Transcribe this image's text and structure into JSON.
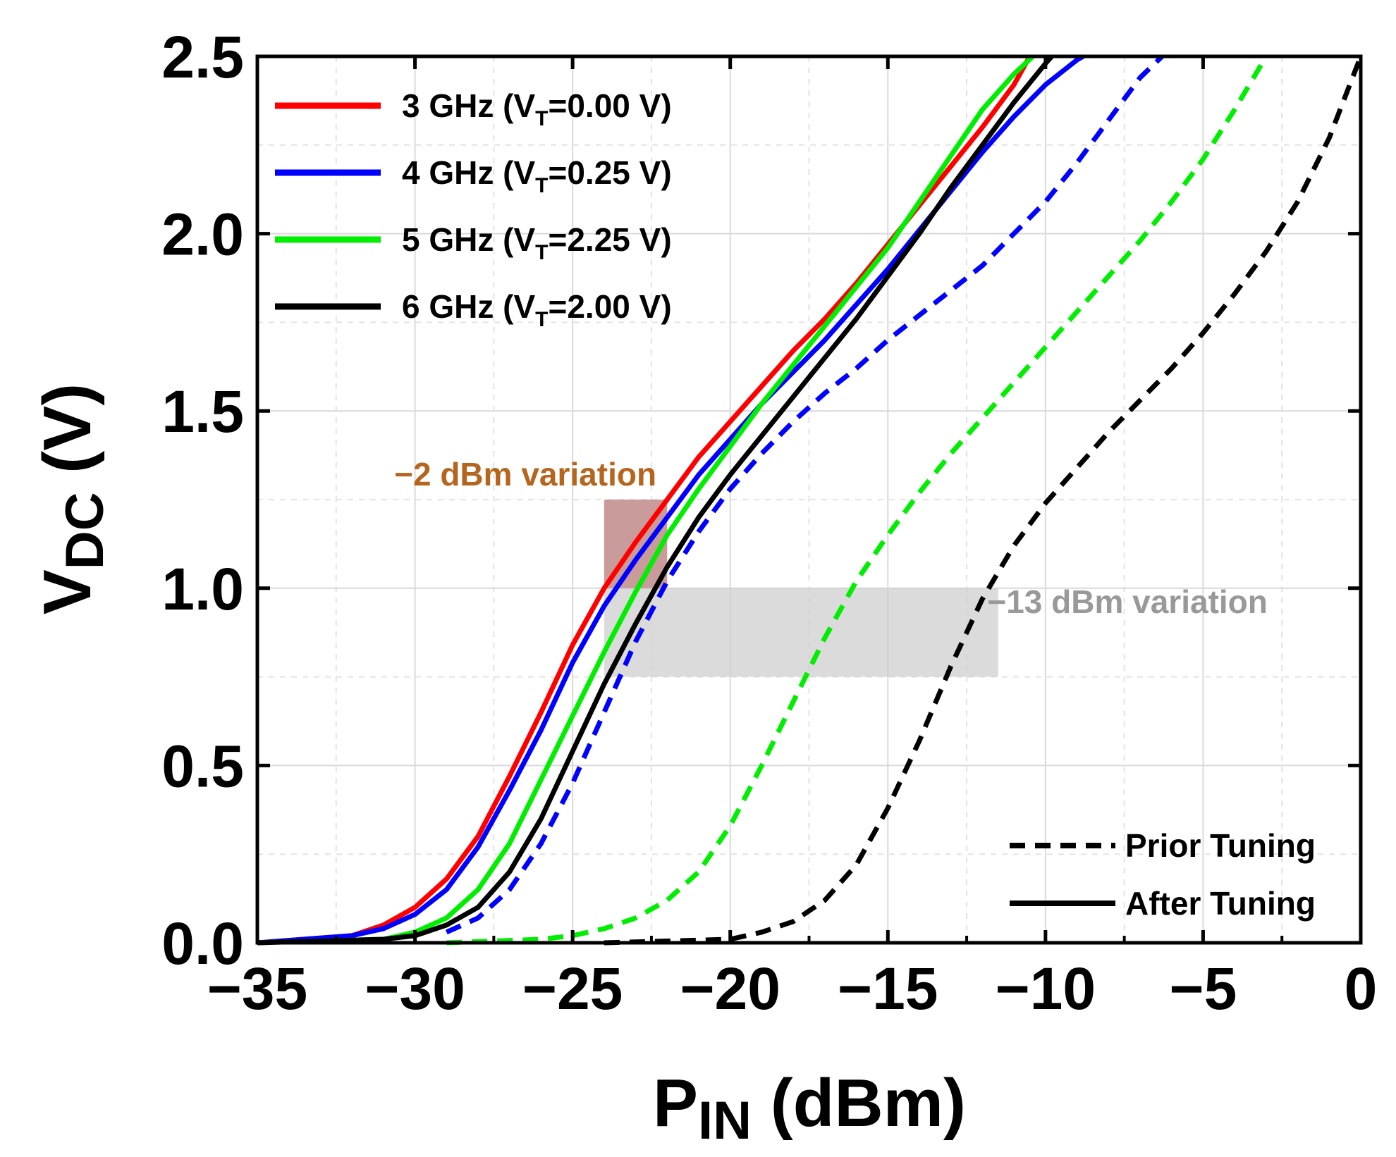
{
  "chart_data": {
    "type": "line",
    "title": "",
    "xlabel": {
      "main": "P",
      "sub": "IN",
      "rest": " (dBm)"
    },
    "ylabel": {
      "main": "V",
      "sub": "DC",
      "rest": " (V)"
    },
    "xlim": [
      -35,
      0
    ],
    "ylim": [
      0,
      2.5
    ],
    "xticks": [
      -35,
      -30,
      -25,
      -20,
      -15,
      -10,
      -5,
      0
    ],
    "xtick_labels": [
      "−35",
      "−30",
      "−25",
      "−20",
      "−15",
      "−10",
      "−5",
      "0"
    ],
    "yticks": [
      0,
      0.5,
      1.0,
      1.5,
      2.0,
      2.5
    ],
    "ytick_labels": [
      "0.0",
      "0.5",
      "1.0",
      "1.5",
      "2.0",
      "2.5"
    ],
    "grid": true,
    "legend_position": "top-left",
    "series": [
      {
        "name": "3 GHz (V_T=0.00 V)",
        "label_main": "3 GHz (V",
        "label_sub": "T",
        "label_rest": "=0.00 V)",
        "color": "#ff0000",
        "style": "solid",
        "x": [
          -35,
          -32,
          -31,
          -30,
          -29,
          -28,
          -27,
          -26,
          -25,
          -24,
          -23,
          -22,
          -21,
          -20,
          -19,
          -18,
          -17,
          -16,
          -15,
          -14,
          -13,
          -12,
          -11,
          -10.5
        ],
        "y": [
          0,
          0.02,
          0.05,
          0.1,
          0.18,
          0.3,
          0.47,
          0.65,
          0.84,
          1.0,
          1.13,
          1.25,
          1.37,
          1.47,
          1.57,
          1.67,
          1.76,
          1.86,
          1.97,
          2.08,
          2.19,
          2.3,
          2.42,
          2.5
        ]
      },
      {
        "name": "4 GHz (V_T=0.25 V)",
        "label_main": "4 GHz (V",
        "label_sub": "T",
        "label_rest": "=0.25 V)",
        "color": "#0000ff",
        "style": "solid",
        "x": [
          -35,
          -32,
          -31,
          -30,
          -29,
          -28,
          -27,
          -26,
          -25,
          -24,
          -23,
          -22,
          -21,
          -20,
          -19,
          -18,
          -17,
          -16,
          -15,
          -14,
          -13,
          -12,
          -11,
          -10,
          -9,
          -8.8
        ],
        "y": [
          0,
          0.02,
          0.04,
          0.08,
          0.15,
          0.27,
          0.43,
          0.6,
          0.79,
          0.95,
          1.08,
          1.2,
          1.32,
          1.42,
          1.52,
          1.61,
          1.7,
          1.8,
          1.9,
          2.01,
          2.12,
          2.23,
          2.33,
          2.42,
          2.49,
          2.5
        ]
      },
      {
        "name": "5 GHz (V_T=2.25 V)",
        "label_main": "5 GHz (V",
        "label_sub": "T",
        "label_rest": "=2.25 V)",
        "color": "#00ee00",
        "style": "solid",
        "x": [
          -35,
          -31,
          -30,
          -29,
          -28,
          -27,
          -26,
          -25,
          -24,
          -23,
          -22,
          -21,
          -20,
          -19,
          -18,
          -17,
          -16,
          -15,
          -14,
          -13,
          -12,
          -11,
          -10.4
        ],
        "y": [
          0,
          0.01,
          0.03,
          0.07,
          0.15,
          0.28,
          0.46,
          0.64,
          0.82,
          0.99,
          1.15,
          1.28,
          1.4,
          1.52,
          1.63,
          1.74,
          1.85,
          1.96,
          2.09,
          2.22,
          2.35,
          2.45,
          2.5
        ]
      },
      {
        "name": "6 GHz (V_T=2.00 V)",
        "label_main": "6 GHz (V",
        "label_sub": "T",
        "label_rest": "=2.00 V)",
        "color": "#000000",
        "style": "solid",
        "x": [
          -35,
          -31,
          -30,
          -29,
          -28,
          -27,
          -26,
          -25,
          -24,
          -23,
          -22,
          -21,
          -20,
          -19,
          -18,
          -17,
          -16,
          -15,
          -14,
          -13,
          -12,
          -11,
          -10,
          -9.8
        ],
        "y": [
          0,
          0.01,
          0.02,
          0.05,
          0.1,
          0.2,
          0.35,
          0.54,
          0.73,
          0.9,
          1.06,
          1.2,
          1.32,
          1.43,
          1.54,
          1.65,
          1.76,
          1.88,
          2.0,
          2.13,
          2.25,
          2.37,
          2.48,
          2.5
        ]
      },
      {
        "name": "4 GHz prior tuning",
        "color": "#0000ff",
        "style": "dashed",
        "x": [
          -29,
          -28,
          -27,
          -26,
          -25,
          -24,
          -23,
          -22,
          -21,
          -20,
          -19,
          -18,
          -17,
          -16,
          -15,
          -14,
          -13,
          -12,
          -11,
          -10,
          -9,
          -8,
          -7,
          -6.3
        ],
        "y": [
          0.03,
          0.07,
          0.15,
          0.28,
          0.45,
          0.65,
          0.85,
          1.02,
          1.16,
          1.28,
          1.38,
          1.47,
          1.55,
          1.62,
          1.7,
          1.77,
          1.84,
          1.91,
          2.0,
          2.09,
          2.2,
          2.32,
          2.44,
          2.5
        ]
      },
      {
        "name": "5 GHz prior tuning",
        "color": "#00ee00",
        "style": "dashed",
        "x": [
          -29,
          -26,
          -25,
          -24,
          -23,
          -22,
          -21,
          -20,
          -19,
          -18,
          -17,
          -16,
          -15,
          -14,
          -13,
          -12,
          -11,
          -10,
          -9,
          -8,
          -7,
          -6,
          -5,
          -4,
          -3
        ],
        "y": [
          0,
          0.01,
          0.02,
          0.04,
          0.07,
          0.12,
          0.2,
          0.33,
          0.5,
          0.68,
          0.86,
          1.02,
          1.15,
          1.27,
          1.38,
          1.48,
          1.58,
          1.68,
          1.78,
          1.88,
          1.98,
          2.09,
          2.21,
          2.35,
          2.5
        ]
      },
      {
        "name": "6 GHz prior tuning",
        "color": "#000000",
        "style": "dashed",
        "x": [
          -24,
          -20,
          -19,
          -18,
          -17,
          -16,
          -15,
          -14,
          -13,
          -12,
          -11,
          -10,
          -9,
          -8,
          -7,
          -6,
          -5,
          -4,
          -3,
          -2,
          -1,
          0
        ],
        "y": [
          0,
          0.01,
          0.03,
          0.06,
          0.12,
          0.22,
          0.38,
          0.57,
          0.78,
          0.97,
          1.12,
          1.24,
          1.34,
          1.44,
          1.53,
          1.62,
          1.72,
          1.83,
          1.95,
          2.09,
          2.27,
          2.5
        ]
      }
    ],
    "style_legend": [
      {
        "label": "Prior Tuning",
        "style": "dashed"
      },
      {
        "label": "After Tuning",
        "style": "solid"
      }
    ],
    "annotations": [
      {
        "text": "−2 dBm variation",
        "color": "#b5651d",
        "region_color": "#c49090",
        "x_range": [
          -24,
          -22
        ],
        "y_range": [
          1.0,
          1.25
        ],
        "anchor_x": -26.5,
        "anchor_y": 1.29
      },
      {
        "text": "−13 dBm variation",
        "color": "#999999",
        "region_color": "#cccccc",
        "x_range": [
          -24,
          -11.5
        ],
        "y_range": [
          0.75,
          1.0
        ],
        "anchor_x": -7.4,
        "anchor_y": 0.93
      }
    ]
  }
}
